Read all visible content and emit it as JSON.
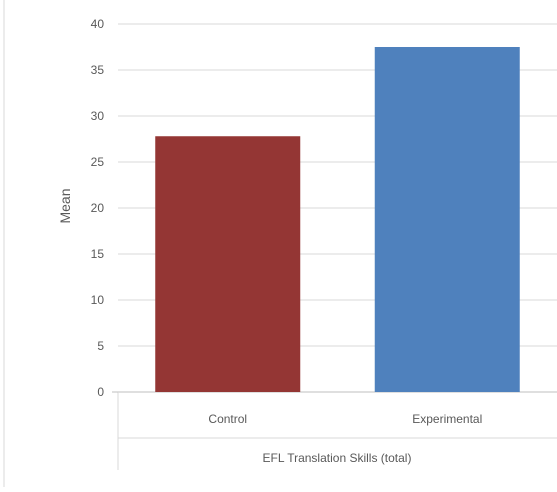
{
  "chart_data": {
    "type": "bar",
    "categories": [
      "Control",
      "Experimental"
    ],
    "values": [
      27.8,
      37.5
    ],
    "colors": [
      "#943634",
      "#4F81BD"
    ],
    "ylabel": "Mean",
    "group_label": "EFL Translation Skills (total)",
    "ylim": [
      0,
      40
    ],
    "yticks": [
      0,
      5,
      10,
      15,
      20,
      25,
      30,
      35,
      40
    ],
    "grid": true
  }
}
